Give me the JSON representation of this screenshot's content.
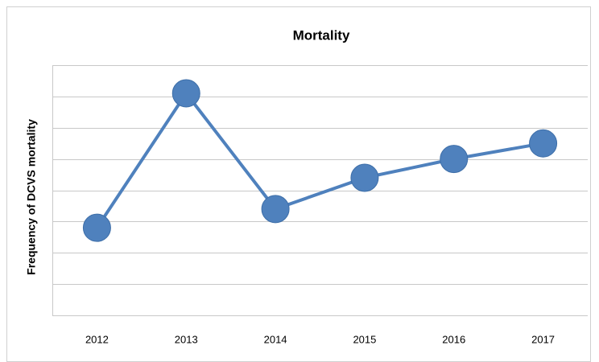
{
  "chart_data": {
    "type": "line",
    "title": "Mortality",
    "y_label": "Frequency of DCVS mortality",
    "categories": [
      "2012",
      "2013",
      "2014",
      "2015",
      "2016",
      "2017"
    ],
    "series": [
      {
        "name": "Mortality",
        "color": "#4f81bd",
        "values": [
          2.8,
          7.1,
          3.4,
          4.4,
          5.0,
          5.5
        ]
      }
    ],
    "ylim": [
      0,
      8
    ],
    "yticks": [
      0,
      1,
      2,
      3,
      4,
      5,
      6,
      7,
      8
    ],
    "grid": true
  }
}
